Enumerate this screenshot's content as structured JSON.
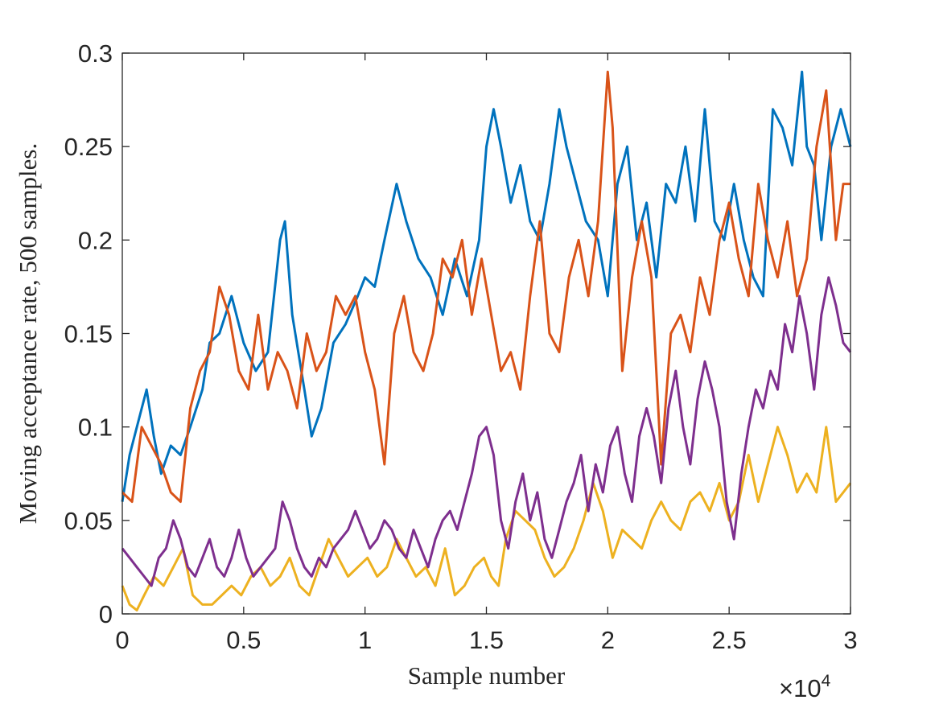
{
  "chart_data": {
    "type": "line",
    "title": "",
    "xlabel": "Sample number",
    "ylabel": "Moving acceptance rate, 500 samples.",
    "x_multiplier": {
      "base": "×10",
      "exponent": "4"
    },
    "xlim": [
      0,
      30000
    ],
    "ylim": [
      0,
      0.3
    ],
    "xticks": [
      0,
      5000,
      10000,
      15000,
      20000,
      25000,
      30000
    ],
    "xtick_labels": [
      "0",
      "0.5",
      "1",
      "1.5",
      "2",
      "2.5",
      "3"
    ],
    "yticks": [
      0,
      0.05,
      0.1,
      0.15,
      0.2,
      0.25,
      0.3
    ],
    "ytick_labels": [
      "0",
      "0.05",
      "0.1",
      "0.15",
      "0.2",
      "0.25",
      "0.3"
    ],
    "grid": false,
    "legend": "none",
    "series": [
      {
        "color": "#0072BD",
        "x": [
          0,
          300,
          600,
          1000,
          1300,
          1600,
          2000,
          2400,
          2800,
          3300,
          3600,
          4000,
          4500,
          5000,
          5500,
          6000,
          6500,
          6700,
          7000,
          7500,
          7800,
          8200,
          8700,
          9200,
          9700,
          10000,
          10400,
          10800,
          11300,
          11700,
          12200,
          12700,
          13200,
          13700,
          14200,
          14700,
          15000,
          15300,
          15600,
          16000,
          16400,
          16800,
          17200,
          17600,
          18000,
          18300,
          18700,
          19100,
          19600,
          20000,
          20400,
          20800,
          21200,
          21600,
          22000,
          22400,
          22800,
          23200,
          23600,
          24000,
          24400,
          24800,
          25200,
          25600,
          26000,
          26400,
          26800,
          27200,
          27600,
          28000,
          28200,
          28500,
          28800,
          29200,
          29600,
          30000
        ],
        "y": [
          0.06,
          0.085,
          0.1,
          0.12,
          0.095,
          0.075,
          0.09,
          0.085,
          0.1,
          0.12,
          0.145,
          0.15,
          0.17,
          0.145,
          0.13,
          0.14,
          0.2,
          0.21,
          0.16,
          0.12,
          0.095,
          0.11,
          0.145,
          0.155,
          0.17,
          0.18,
          0.175,
          0.2,
          0.23,
          0.21,
          0.19,
          0.18,
          0.16,
          0.19,
          0.17,
          0.2,
          0.25,
          0.27,
          0.25,
          0.22,
          0.24,
          0.21,
          0.2,
          0.23,
          0.27,
          0.25,
          0.23,
          0.21,
          0.2,
          0.17,
          0.23,
          0.25,
          0.2,
          0.22,
          0.18,
          0.23,
          0.22,
          0.25,
          0.21,
          0.27,
          0.21,
          0.2,
          0.23,
          0.2,
          0.18,
          0.17,
          0.27,
          0.26,
          0.24,
          0.29,
          0.25,
          0.24,
          0.2,
          0.25,
          0.27,
          0.25
        ]
      },
      {
        "color": "#D95319",
        "x": [
          0,
          400,
          800,
          1200,
          1600,
          2000,
          2400,
          2800,
          3200,
          3600,
          4000,
          4400,
          4800,
          5200,
          5600,
          6000,
          6400,
          6800,
          7200,
          7600,
          8000,
          8400,
          8800,
          9200,
          9600,
          10000,
          10400,
          10800,
          11200,
          11600,
          12000,
          12400,
          12800,
          13200,
          13600,
          14000,
          14400,
          14800,
          15200,
          15600,
          16000,
          16400,
          16800,
          17200,
          17600,
          18000,
          18400,
          18800,
          19200,
          19600,
          20000,
          20200,
          20600,
          21000,
          21400,
          21800,
          22200,
          22600,
          23000,
          23400,
          23800,
          24200,
          24600,
          25000,
          25400,
          25800,
          26200,
          26600,
          27000,
          27400,
          27800,
          28200,
          28600,
          29000,
          29400,
          29700,
          30000
        ],
        "y": [
          0.065,
          0.06,
          0.1,
          0.09,
          0.08,
          0.065,
          0.06,
          0.11,
          0.13,
          0.14,
          0.175,
          0.16,
          0.13,
          0.12,
          0.16,
          0.12,
          0.14,
          0.13,
          0.11,
          0.15,
          0.13,
          0.14,
          0.17,
          0.16,
          0.17,
          0.14,
          0.12,
          0.08,
          0.15,
          0.17,
          0.14,
          0.13,
          0.15,
          0.19,
          0.18,
          0.2,
          0.16,
          0.19,
          0.16,
          0.13,
          0.14,
          0.12,
          0.17,
          0.21,
          0.15,
          0.14,
          0.18,
          0.2,
          0.17,
          0.21,
          0.29,
          0.26,
          0.13,
          0.18,
          0.21,
          0.18,
          0.08,
          0.15,
          0.16,
          0.14,
          0.18,
          0.16,
          0.2,
          0.22,
          0.19,
          0.17,
          0.23,
          0.2,
          0.18,
          0.21,
          0.17,
          0.19,
          0.25,
          0.28,
          0.2,
          0.23,
          0.23
        ]
      },
      {
        "color": "#EDB120",
        "x": [
          0,
          300,
          600,
          900,
          1300,
          1700,
          2100,
          2500,
          2900,
          3300,
          3700,
          4100,
          4500,
          4900,
          5300,
          5700,
          6100,
          6500,
          6900,
          7300,
          7700,
          8100,
          8500,
          8900,
          9300,
          9700,
          10100,
          10500,
          10900,
          11300,
          11700,
          12100,
          12500,
          12900,
          13300,
          13700,
          14100,
          14500,
          14900,
          15200,
          15500,
          15800,
          16200,
          16600,
          17000,
          17400,
          17800,
          18200,
          18600,
          19000,
          19400,
          19800,
          20200,
          20600,
          21000,
          21400,
          21800,
          22200,
          22600,
          23000,
          23400,
          23800,
          24200,
          24600,
          25000,
          25400,
          25800,
          26200,
          26600,
          27000,
          27400,
          27800,
          28200,
          28600,
          29000,
          29400,
          29700,
          30000
        ],
        "y": [
          0.015,
          0.005,
          0.002,
          0.01,
          0.02,
          0.015,
          0.025,
          0.035,
          0.01,
          0.005,
          0.005,
          0.01,
          0.015,
          0.01,
          0.02,
          0.025,
          0.015,
          0.02,
          0.03,
          0.015,
          0.01,
          0.025,
          0.04,
          0.03,
          0.02,
          0.025,
          0.03,
          0.02,
          0.025,
          0.04,
          0.03,
          0.02,
          0.025,
          0.015,
          0.035,
          0.01,
          0.015,
          0.025,
          0.03,
          0.02,
          0.015,
          0.04,
          0.055,
          0.05,
          0.045,
          0.03,
          0.02,
          0.025,
          0.035,
          0.05,
          0.07,
          0.055,
          0.03,
          0.045,
          0.04,
          0.035,
          0.05,
          0.06,
          0.05,
          0.045,
          0.06,
          0.065,
          0.055,
          0.07,
          0.05,
          0.06,
          0.085,
          0.06,
          0.08,
          0.1,
          0.085,
          0.065,
          0.075,
          0.065,
          0.1,
          0.06,
          0.065,
          0.07
        ]
      },
      {
        "color": "#7E2F8E",
        "x": [
          0,
          300,
          600,
          900,
          1200,
          1500,
          1800,
          2100,
          2400,
          2700,
          3000,
          3300,
          3600,
          3900,
          4200,
          4500,
          4800,
          5100,
          5400,
          5700,
          6000,
          6300,
          6600,
          6900,
          7200,
          7500,
          7800,
          8100,
          8400,
          8700,
          9000,
          9300,
          9600,
          9900,
          10200,
          10500,
          10800,
          11100,
          11400,
          11700,
          12000,
          12300,
          12600,
          12900,
          13200,
          13500,
          13800,
          14100,
          14400,
          14700,
          15000,
          15300,
          15600,
          15900,
          16200,
          16500,
          16800,
          17100,
          17400,
          17700,
          18000,
          18300,
          18600,
          18900,
          19200,
          19500,
          19800,
          20100,
          20400,
          20700,
          21000,
          21300,
          21600,
          21900,
          22200,
          22500,
          22800,
          23100,
          23400,
          23700,
          24000,
          24300,
          24600,
          24900,
          25200,
          25500,
          25800,
          26100,
          26400,
          26700,
          27000,
          27300,
          27600,
          27900,
          28200,
          28500,
          28800,
          29100,
          29400,
          29700,
          30000
        ],
        "y": [
          0.035,
          0.03,
          0.025,
          0.02,
          0.015,
          0.03,
          0.035,
          0.05,
          0.04,
          0.025,
          0.02,
          0.03,
          0.04,
          0.025,
          0.02,
          0.03,
          0.045,
          0.03,
          0.02,
          0.025,
          0.03,
          0.035,
          0.06,
          0.05,
          0.035,
          0.025,
          0.02,
          0.03,
          0.025,
          0.035,
          0.04,
          0.045,
          0.055,
          0.045,
          0.035,
          0.04,
          0.05,
          0.045,
          0.035,
          0.03,
          0.045,
          0.035,
          0.025,
          0.04,
          0.05,
          0.055,
          0.045,
          0.06,
          0.075,
          0.095,
          0.1,
          0.085,
          0.05,
          0.035,
          0.06,
          0.075,
          0.05,
          0.065,
          0.04,
          0.03,
          0.045,
          0.06,
          0.07,
          0.085,
          0.055,
          0.08,
          0.065,
          0.09,
          0.1,
          0.075,
          0.06,
          0.095,
          0.11,
          0.095,
          0.07,
          0.11,
          0.13,
          0.1,
          0.08,
          0.115,
          0.135,
          0.12,
          0.1,
          0.06,
          0.04,
          0.075,
          0.1,
          0.12,
          0.11,
          0.13,
          0.12,
          0.155,
          0.14,
          0.17,
          0.15,
          0.12,
          0.16,
          0.18,
          0.165,
          0.145,
          0.14
        ]
      }
    ]
  }
}
